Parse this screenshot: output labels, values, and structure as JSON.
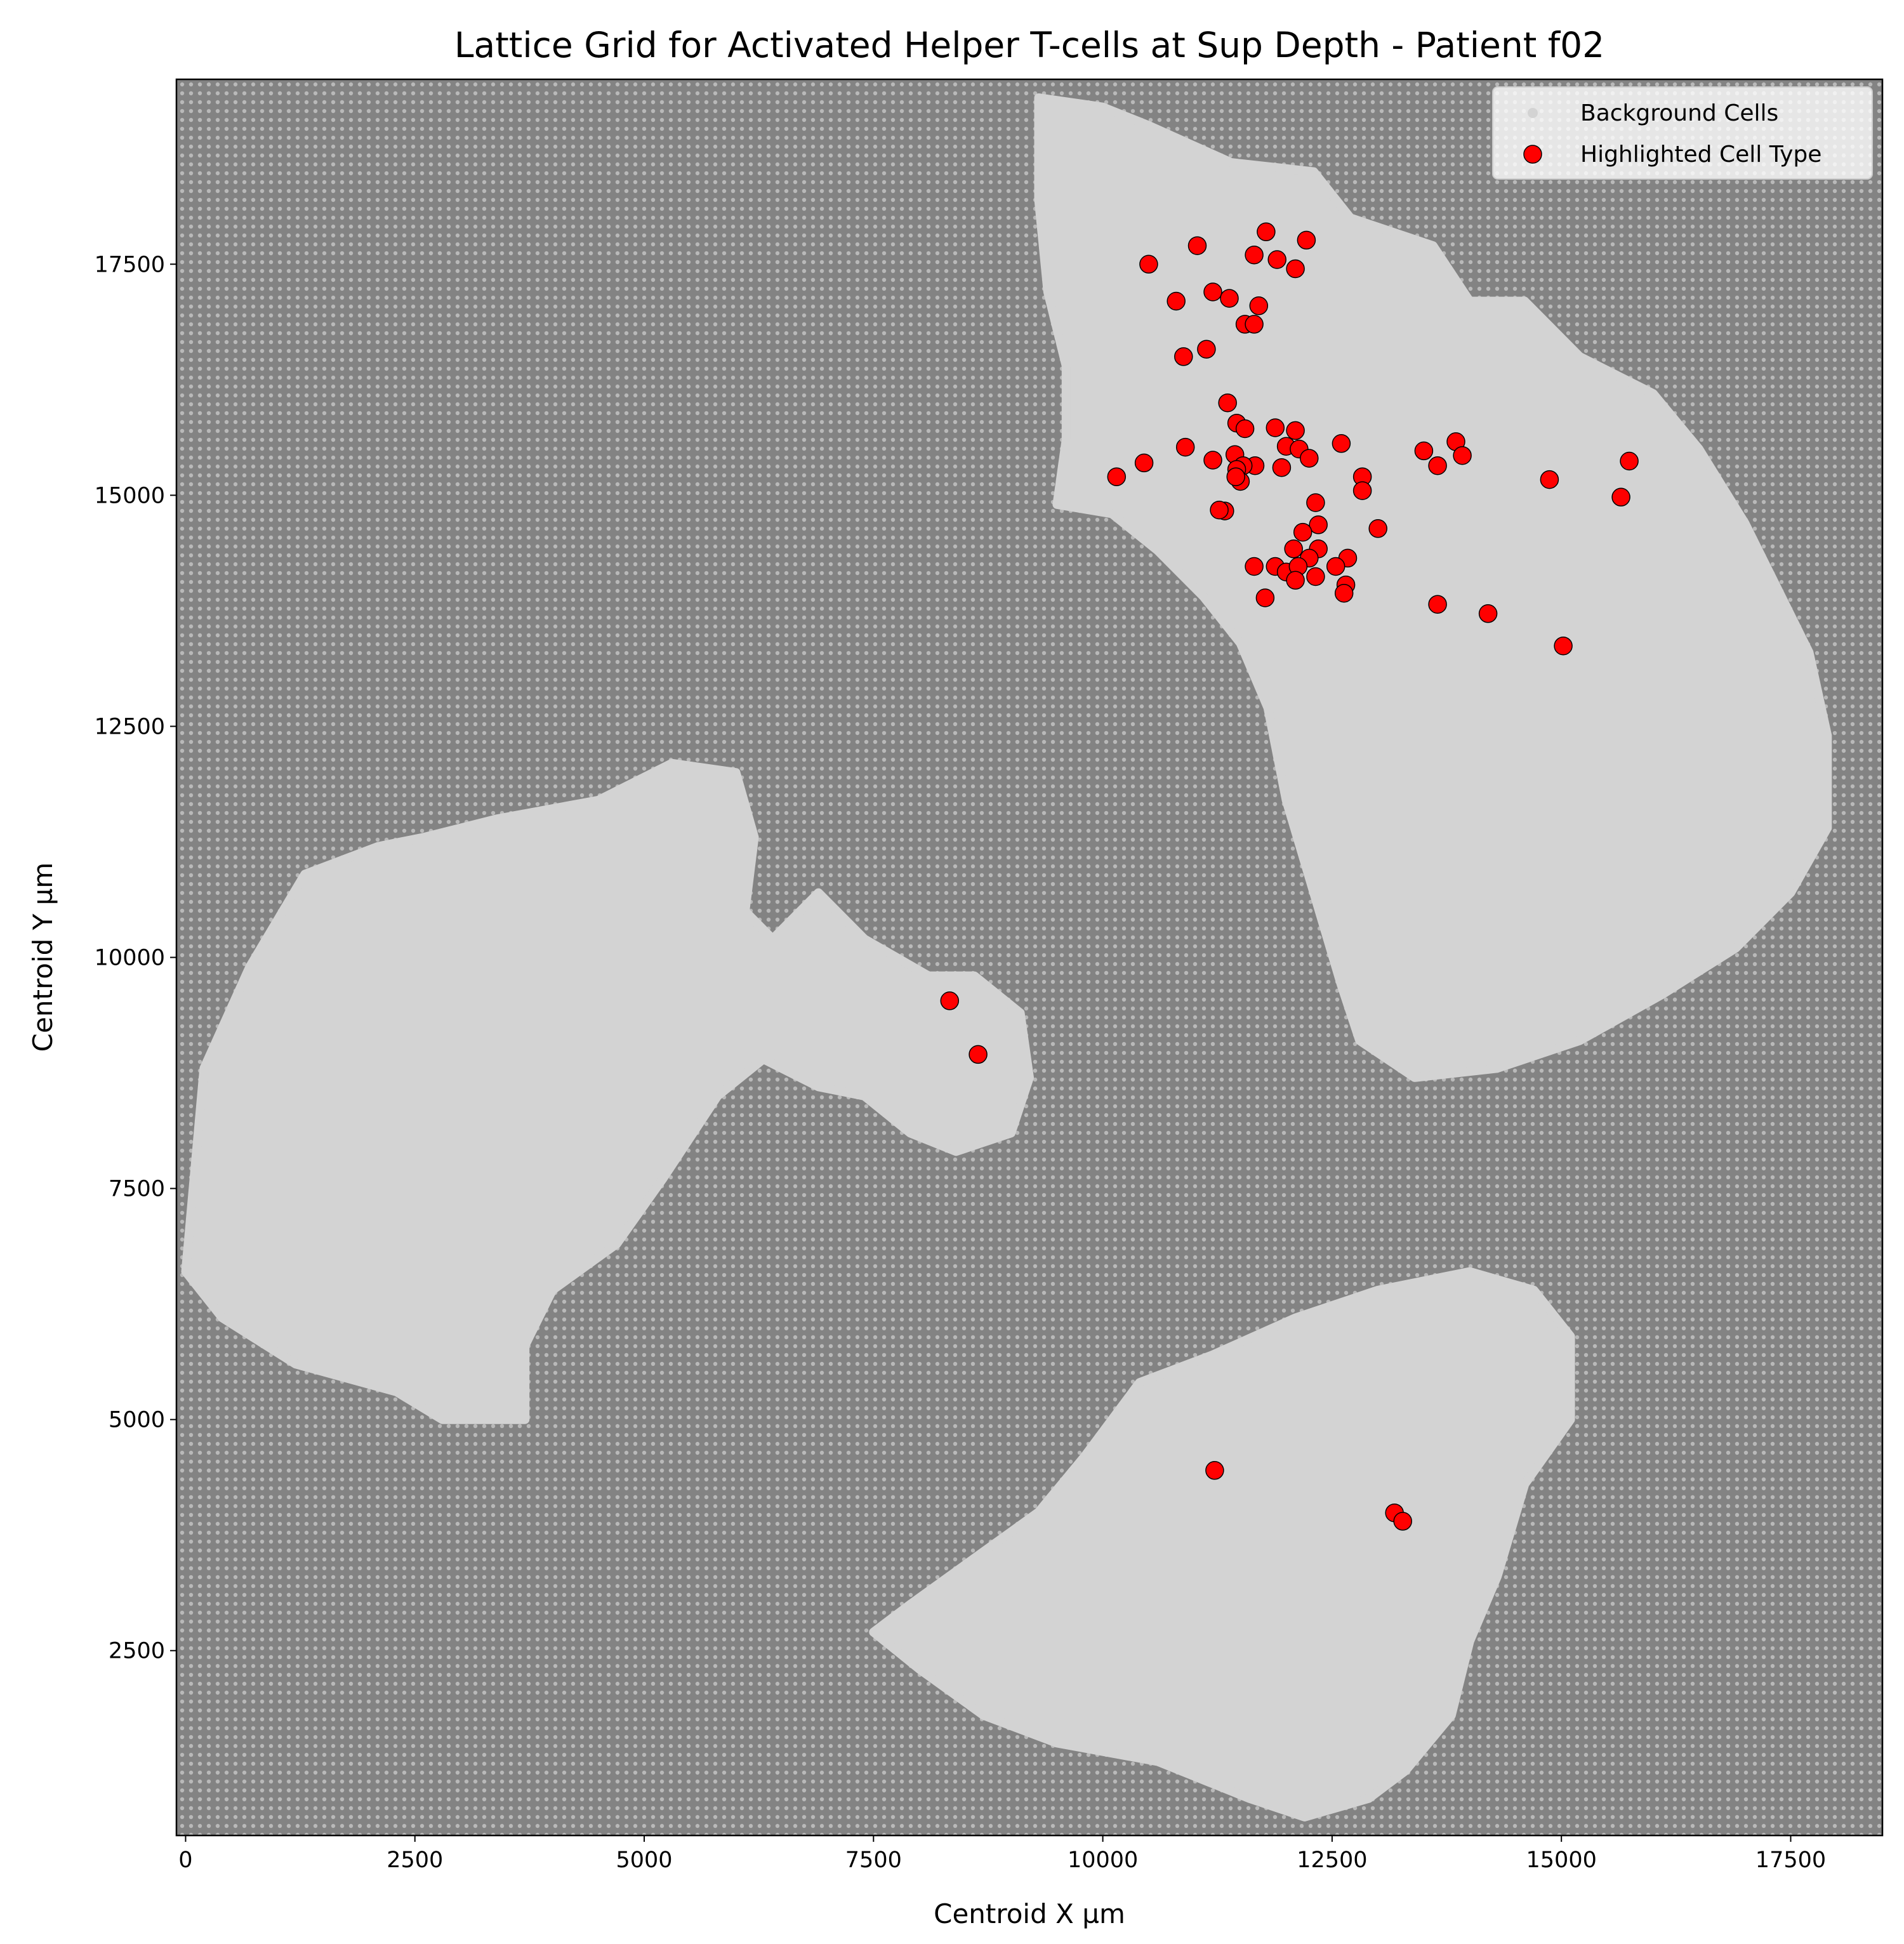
{
  "chart_data": {
    "type": "scatter",
    "title": "Lattice Grid for Activated Helper T-cells at Sup Depth - Patient f02",
    "xlabel": "Centroid X µm",
    "ylabel": "Centroid Y µm",
    "xlim": [
      -100,
      18500
    ],
    "ylim": [
      500,
      19500
    ],
    "xticks": [
      0,
      2500,
      5000,
      7500,
      10000,
      12500,
      15000,
      17500
    ],
    "yticks": [
      2500,
      5000,
      7500,
      10000,
      12500,
      15000,
      17500
    ],
    "grid": false,
    "legend_position": "top-right",
    "colors": {
      "lattice_background": "#838383",
      "background_cells": "#d3d3d3",
      "highlighted": "#ff0000",
      "highlighted_edge": "#000000"
    },
    "series": [
      {
        "name": "Background Cells",
        "marker": "small-dot",
        "color": "#d3d3d3",
        "regions": [
          {
            "region": "lower-left tissue section",
            "outline": [
              [
                0,
                6600
              ],
              [
                200,
                8800
              ],
              [
                700,
                9900
              ],
              [
                1300,
                10900
              ],
              [
                2100,
                11200
              ],
              [
                2600,
                11300
              ],
              [
                3400,
                11500
              ],
              [
                4500,
                11700
              ],
              [
                5300,
                12100
              ],
              [
                6000,
                12000
              ],
              [
                6200,
                11300
              ],
              [
                6100,
                10500
              ],
              [
                6400,
                10200
              ],
              [
                6900,
                10700
              ],
              [
                7400,
                10200
              ],
              [
                8100,
                9800
              ],
              [
                8600,
                9800
              ],
              [
                9100,
                9400
              ],
              [
                9200,
                8700
              ],
              [
                9000,
                8100
              ],
              [
                8400,
                7900
              ],
              [
                7900,
                8100
              ],
              [
                7400,
                8500
              ],
              [
                6900,
                8600
              ],
              [
                6300,
                8900
              ],
              [
                5800,
                8500
              ],
              [
                5200,
                7600
              ],
              [
                4700,
                6900
              ],
              [
                4000,
                6400
              ],
              [
                3700,
                5800
              ],
              [
                3700,
                5000
              ],
              [
                2800,
                5000
              ],
              [
                2300,
                5300
              ],
              [
                1200,
                5600
              ],
              [
                400,
                6100
              ]
            ]
          },
          {
            "region": "upper-right tissue section",
            "outline": [
              [
                9300,
                19300
              ],
              [
                10000,
                19200
              ],
              [
                10500,
                19000
              ],
              [
                11400,
                18600
              ],
              [
                12300,
                18500
              ],
              [
                12700,
                18000
              ],
              [
                13600,
                17700
              ],
              [
                14000,
                17100
              ],
              [
                14600,
                17100
              ],
              [
                15200,
                16500
              ],
              [
                16000,
                16100
              ],
              [
                16500,
                15500
              ],
              [
                17000,
                14700
              ],
              [
                17300,
                14100
              ],
              [
                17700,
                13300
              ],
              [
                17900,
                12400
              ],
              [
                17900,
                11400
              ],
              [
                17500,
                10700
              ],
              [
                16900,
                10100
              ],
              [
                16100,
                9600
              ],
              [
                15200,
                9100
              ],
              [
                14300,
                8800
              ],
              [
                13400,
                8700
              ],
              [
                12800,
                9100
              ],
              [
                12600,
                9700
              ],
              [
                12300,
                10700
              ],
              [
                12000,
                11700
              ],
              [
                11800,
                12700
              ],
              [
                11500,
                13400
              ],
              [
                11100,
                13900
              ],
              [
                10600,
                14400
              ],
              [
                10100,
                14800
              ],
              [
                9500,
                14900
              ],
              [
                9600,
                15600
              ],
              [
                9600,
                16400
              ],
              [
                9400,
                17200
              ],
              [
                9300,
                18200
              ]
            ]
          },
          {
            "region": "bottom tissue section",
            "outline": [
              [
                7500,
                2700
              ],
              [
                8000,
                2300
              ],
              [
                8700,
                1800
              ],
              [
                9500,
                1500
              ],
              [
                10600,
                1300
              ],
              [
                11600,
                900
              ],
              [
                12200,
                700
              ],
              [
                12900,
                900
              ],
              [
                13300,
                1200
              ],
              [
                13800,
                1800
              ],
              [
                14000,
                2600
              ],
              [
                14300,
                3300
              ],
              [
                14600,
                4300
              ],
              [
                15100,
                5000
              ],
              [
                15100,
                5900
              ],
              [
                14700,
                6400
              ],
              [
                14000,
                6600
              ],
              [
                13000,
                6400
              ],
              [
                12100,
                6100
              ],
              [
                11200,
                5700
              ],
              [
                10400,
                5400
              ],
              [
                9800,
                4600
              ],
              [
                9300,
                4000
              ],
              [
                8600,
                3500
              ],
              [
                7900,
                3000
              ]
            ]
          }
        ]
      },
      {
        "name": "Highlighted Cell Type",
        "marker": "circle",
        "color": "#ff0000",
        "points": [
          [
            11030,
            17700
          ],
          [
            11780,
            17850
          ],
          [
            12220,
            17760
          ],
          [
            10500,
            17500
          ],
          [
            11650,
            17600
          ],
          [
            11900,
            17550
          ],
          [
            12100,
            17450
          ],
          [
            10800,
            17100
          ],
          [
            11200,
            17200
          ],
          [
            11380,
            17130
          ],
          [
            11700,
            17050
          ],
          [
            11550,
            16850
          ],
          [
            11650,
            16850
          ],
          [
            11130,
            16580
          ],
          [
            10880,
            16500
          ],
          [
            11360,
            16000
          ],
          [
            11460,
            15780
          ],
          [
            11550,
            15720
          ],
          [
            11880,
            15730
          ],
          [
            12100,
            15700
          ],
          [
            12000,
            15530
          ],
          [
            12140,
            15500
          ],
          [
            12600,
            15560
          ],
          [
            10900,
            15520
          ],
          [
            11440,
            15440
          ],
          [
            12250,
            15400
          ],
          [
            11950,
            15300
          ],
          [
            11660,
            15320
          ],
          [
            11530,
            15320
          ],
          [
            11460,
            15280
          ],
          [
            11200,
            15380
          ],
          [
            10450,
            15350
          ],
          [
            10150,
            15200
          ],
          [
            11500,
            15150
          ],
          [
            11450,
            15200
          ],
          [
            12830,
            15200
          ],
          [
            12830,
            15050
          ],
          [
            13500,
            15480
          ],
          [
            13650,
            15320
          ],
          [
            13850,
            15580
          ],
          [
            13920,
            15430
          ],
          [
            14870,
            15170
          ],
          [
            15740,
            15370
          ],
          [
            15650,
            14980
          ],
          [
            11330,
            14830
          ],
          [
            11270,
            14840
          ],
          [
            12320,
            14920
          ],
          [
            12350,
            14680
          ],
          [
            13000,
            14640
          ],
          [
            12180,
            14600
          ],
          [
            12080,
            14420
          ],
          [
            12350,
            14420
          ],
          [
            12670,
            14320
          ],
          [
            12250,
            14320
          ],
          [
            11650,
            14230
          ],
          [
            11880,
            14230
          ],
          [
            12000,
            14170
          ],
          [
            12130,
            14230
          ],
          [
            12540,
            14230
          ],
          [
            12100,
            14080
          ],
          [
            12320,
            14120
          ],
          [
            12650,
            14030
          ],
          [
            12630,
            13940
          ],
          [
            11770,
            13890
          ],
          [
            13650,
            13820
          ],
          [
            14200,
            13720
          ],
          [
            15020,
            13370
          ],
          [
            8330,
            9530
          ],
          [
            8640,
            8950
          ],
          [
            11220,
            4450
          ],
          [
            13180,
            3990
          ],
          [
            13270,
            3900
          ]
        ]
      }
    ],
    "legend": [
      "Background Cells",
      "Highlighted Cell Type"
    ]
  }
}
